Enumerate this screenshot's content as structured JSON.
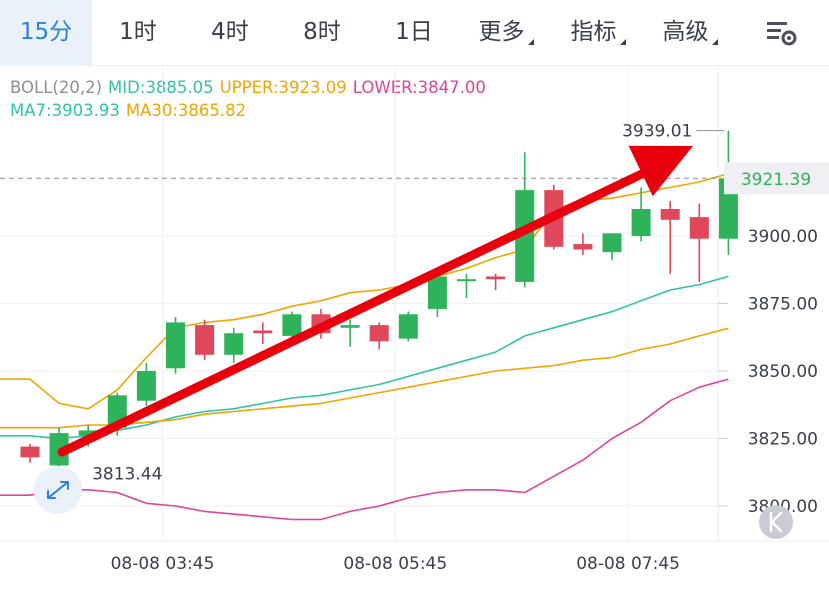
{
  "tabs": [
    {
      "label": "15分",
      "active": true,
      "dropdown": false
    },
    {
      "label": "1时",
      "active": false,
      "dropdown": false
    },
    {
      "label": "4时",
      "active": false,
      "dropdown": false
    },
    {
      "label": "8时",
      "active": false,
      "dropdown": false
    },
    {
      "label": "1日",
      "active": false,
      "dropdown": false
    },
    {
      "label": "更多",
      "active": false,
      "dropdown": true
    },
    {
      "label": "指标",
      "active": false,
      "dropdown": true
    },
    {
      "label": "高级",
      "active": false,
      "dropdown": true
    }
  ],
  "settings_icon": "chart-settings-icon",
  "legend": {
    "boll": "BOLL(20,2)",
    "mid": "MID:3885.05",
    "upper": "UPPER:3923.09",
    "lower": "LOWER:3847.00",
    "ma7": "MA7:3903.93",
    "ma30": "MA30:3865.82"
  },
  "colors": {
    "up": "#2fb35a",
    "down": "#e0475a",
    "accent": "#2f7fd6",
    "mid": "#2ec4a4",
    "upper": "#f0a500",
    "lower": "#e0449a",
    "ma30": "#f0a500",
    "arrow": "#e8000c"
  },
  "price_label": "3921.39",
  "price_label_value": 3921.39,
  "high_label": "3939.01",
  "low_label": "3813.44",
  "collapse_icon": "collapse-k-icon",
  "expand_icon": "expand-arrows-icon",
  "chart_data": {
    "type": "candlestick",
    "ylim": [
      3790,
      3947
    ],
    "y_ticks": [
      3800,
      3825,
      3850,
      3875,
      3900
    ],
    "y_tick_labels": [
      "3800.00",
      "3825.00",
      "3850.00",
      "3875.00",
      "3900.00"
    ],
    "x_tick_labels": [
      "08-08 03:45",
      "08-08 05:45",
      "08-08 07:45"
    ],
    "x_tick_index": [
      5,
      13,
      21
    ],
    "candles": [
      {
        "o": 3822,
        "h": 3823,
        "l": 3816,
        "c": 3818
      },
      {
        "o": 3815,
        "h": 3829,
        "l": 3813.44,
        "c": 3827
      },
      {
        "o": 3826,
        "h": 3830,
        "l": 3822,
        "c": 3828
      },
      {
        "o": 3829,
        "h": 3842,
        "l": 3826,
        "c": 3841
      },
      {
        "o": 3839,
        "h": 3853,
        "l": 3837,
        "c": 3850
      },
      {
        "o": 3851,
        "h": 3870,
        "l": 3849,
        "c": 3868
      },
      {
        "o": 3867,
        "h": 3869,
        "l": 3854,
        "c": 3856
      },
      {
        "o": 3856,
        "h": 3866,
        "l": 3853,
        "c": 3864
      },
      {
        "o": 3865,
        "h": 3868,
        "l": 3860,
        "c": 3864
      },
      {
        "o": 3863,
        "h": 3872,
        "l": 3860,
        "c": 3871
      },
      {
        "o": 3871,
        "h": 3873,
        "l": 3862,
        "c": 3864
      },
      {
        "o": 3866,
        "h": 3869,
        "l": 3859,
        "c": 3867
      },
      {
        "o": 3867,
        "h": 3868,
        "l": 3858,
        "c": 3861
      },
      {
        "o": 3862,
        "h": 3872,
        "l": 3861,
        "c": 3871
      },
      {
        "o": 3873,
        "h": 3887,
        "l": 3870,
        "c": 3885
      },
      {
        "o": 3884,
        "h": 3886,
        "l": 3877,
        "c": 3884
      },
      {
        "o": 3885,
        "h": 3886,
        "l": 3880,
        "c": 3884
      },
      {
        "o": 3883,
        "h": 3931,
        "l": 3881,
        "c": 3917
      },
      {
        "o": 3917,
        "h": 3919,
        "l": 3895,
        "c": 3896
      },
      {
        "o": 3897,
        "h": 3901,
        "l": 3893,
        "c": 3895
      },
      {
        "o": 3894,
        "h": 3900,
        "l": 3891,
        "c": 3901
      },
      {
        "o": 3900,
        "h": 3918,
        "l": 3898,
        "c": 3910
      },
      {
        "o": 3910,
        "h": 3913,
        "l": 3886,
        "c": 3906
      },
      {
        "o": 3907,
        "h": 3912,
        "l": 3883,
        "c": 3899
      },
      {
        "o": 3899,
        "h": 3939.01,
        "l": 3893,
        "c": 3921.39
      }
    ],
    "series": [
      {
        "name": "UPPER",
        "values": [
          3847,
          3838,
          3836,
          3843,
          3855,
          3866,
          3868,
          3869,
          3871,
          3874,
          3876,
          3879,
          3880,
          3882,
          3885,
          3888,
          3892,
          3895,
          3910,
          3913,
          3914,
          3916,
          3918,
          3920,
          3923.09
        ]
      },
      {
        "name": "MID",
        "values": [
          3826,
          3825,
          3826,
          3828,
          3830,
          3833,
          3835,
          3836,
          3838,
          3840,
          3841,
          3843,
          3845,
          3848,
          3851,
          3854,
          3857,
          3863,
          3866,
          3869,
          3872,
          3876,
          3880,
          3882,
          3885.05
        ]
      },
      {
        "name": "LOWER",
        "values": [
          3804,
          3806,
          3806,
          3805,
          3801,
          3800,
          3798,
          3797,
          3796,
          3795,
          3795,
          3798,
          3800,
          3803,
          3805,
          3806,
          3806,
          3805,
          3811,
          3817,
          3825,
          3831,
          3839,
          3844,
          3847.0
        ]
      },
      {
        "name": "MA30",
        "values": [
          3829,
          3829,
          3830,
          3830,
          3831,
          3832,
          3834,
          3835,
          3836,
          3837,
          3838,
          3840,
          3842,
          3844,
          3846,
          3848,
          3850,
          3851,
          3852,
          3854,
          3855,
          3858,
          3860,
          3863,
          3865.82
        ]
      }
    ]
  }
}
